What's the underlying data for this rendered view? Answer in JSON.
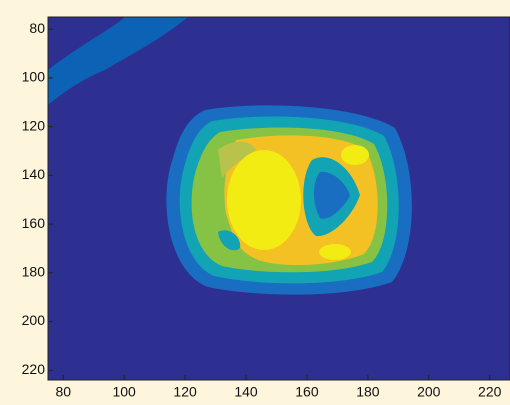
{
  "chart_data": {
    "type": "image",
    "xlim": [
      75,
      226
    ],
    "ylim": [
      224,
      75
    ],
    "xticks": [
      80,
      100,
      120,
      140,
      160,
      180,
      200,
      220
    ],
    "yticks": [
      80,
      100,
      120,
      140,
      160,
      180,
      200,
      220
    ]
  }
}
